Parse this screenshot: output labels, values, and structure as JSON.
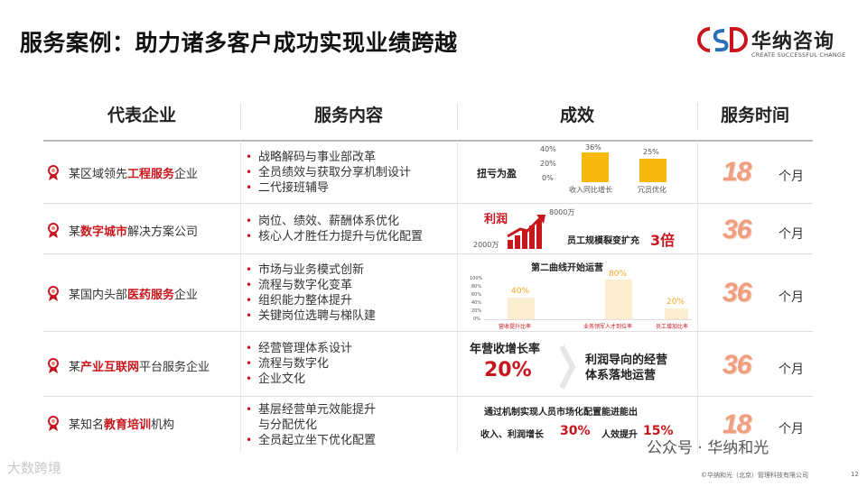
{
  "title": "服务案例：助力诸多客户成功实现业绩跨越",
  "logo": {
    "cn": "华纳咨询",
    "en": "CREATE SUCCESSFUL CHANGE",
    "colors": {
      "red": "#c8161d",
      "blue": "#2a6fb6"
    }
  },
  "columns": [
    "代表企业",
    "服务内容",
    "成效",
    "服务时间"
  ],
  "rows": [
    {
      "company": {
        "pre": "某区域领先",
        "hl": "工程服务",
        "post": "企业"
      },
      "services": [
        "战略解码与事业部改革",
        "全员绩效与获取分享机制设计",
        "二代接班辅导"
      ],
      "time": {
        "num": "18",
        "unit": "个月"
      },
      "effect": {
        "label": "扭亏为盈",
        "yticks": [
          "40%",
          "20%",
          "0%"
        ],
        "bars": [
          {
            "value": "36%",
            "label": "收入同比增长",
            "v": 36
          },
          {
            "value": "25%",
            "label": "冗员优化",
            "v": 25
          }
        ]
      }
    },
    {
      "company": {
        "pre": "某",
        "hl": "数字城市",
        "post": "解决方案公司"
      },
      "services": [
        "岗位、绩效、薪酬体系优化",
        "核心人才胜任力提升与优化配置"
      ],
      "time": {
        "num": "36",
        "unit": "个月"
      },
      "effect": {
        "profit": "利润",
        "from": "2000万",
        "to": "8000万",
        "staff": "员工规模裂变扩充",
        "mult": "3倍"
      }
    },
    {
      "company": {
        "pre": "某国内头部",
        "hl": "医药服务",
        "post": "企业"
      },
      "services": [
        "市场与业务模式创新",
        "流程与数字化变革",
        "组织能力整体提升",
        "关键岗位选聘与梯队建"
      ],
      "time": {
        "num": "36",
        "unit": "个月"
      },
      "effect": {
        "title": "第二曲线开始运营",
        "yticks": [
          "100%",
          "80%",
          "60%",
          "40%",
          "20%",
          "0%"
        ],
        "bars": [
          {
            "value": "40%",
            "label": "营收提升比率",
            "v": 40
          },
          {
            "value": "80%",
            "label": "业务领军人才到位率",
            "v": 80
          },
          {
            "value": "20%",
            "label": "员工增加比率",
            "v": 20
          }
        ]
      }
    },
    {
      "company": {
        "pre": "某",
        "hl": "产业互联网",
        "post": "平台服务企业"
      },
      "services": [
        "经营管理体系设计",
        "流程与数字化",
        "企业文化"
      ],
      "time": {
        "num": "36",
        "unit": "个月"
      },
      "effect": {
        "label": "年营收增长率",
        "value": "20%",
        "note1": "利润导向的经营",
        "note2": "体系落地运营"
      }
    },
    {
      "company": {
        "pre": "某知名",
        "hl": "教育培训",
        "post": "机构"
      },
      "services": [
        "基层经营单元效能提升",
        "与分配优化",
        "全员起立坐下优化配置"
      ],
      "time": {
        "num": "18",
        "unit": "个月"
      },
      "effect": {
        "headline": "通过机制实现人员市场化配置能进能出",
        "l1": "收入、利润增长",
        "v1": "30%",
        "l2": "人效提升",
        "v2": "15%"
      }
    }
  ],
  "footer": {
    "watermark": "大数跨境",
    "publisher": "公众号 · 华纳和光",
    "copyright": "©华纳和光（北京）管理科技有限公司",
    "page": "12"
  }
}
